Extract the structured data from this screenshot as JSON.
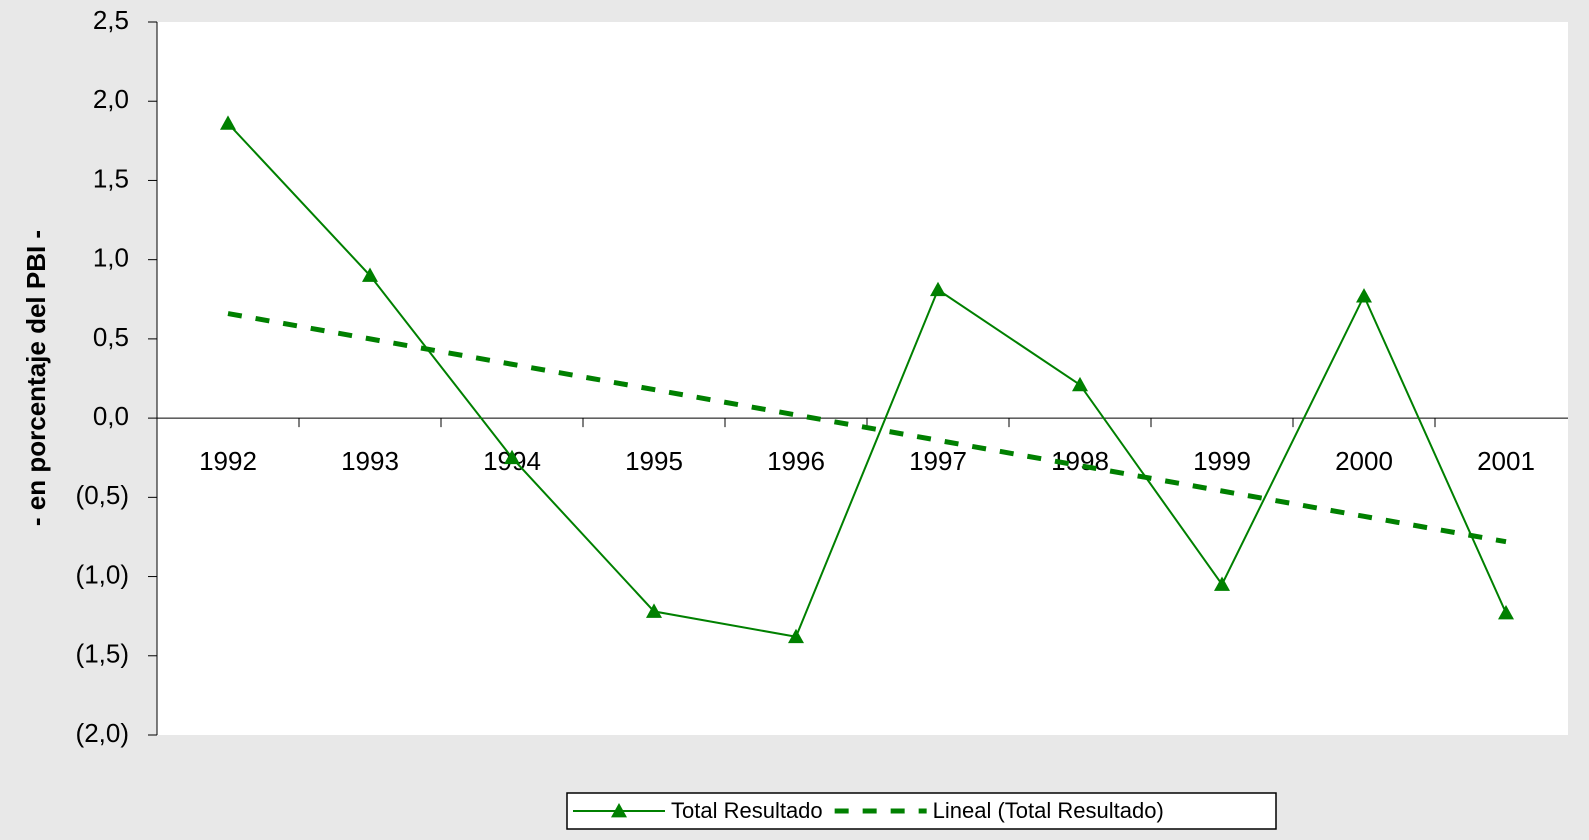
{
  "chart_data": {
    "type": "line",
    "y_label": "- en porcentaje del PBI -",
    "categories": [
      "1992",
      "1993",
      "1994",
      "1995",
      "1996",
      "1997",
      "1998",
      "1999",
      "2000",
      "2001"
    ],
    "series": [
      {
        "name": "Total Resultado",
        "color": "#008000",
        "marker": "triangle",
        "dashed": false,
        "values": [
          1.86,
          0.9,
          -0.25,
          -1.22,
          -1.38,
          0.81,
          0.21,
          -1.05,
          0.77,
          -1.23
        ]
      },
      {
        "name": "Lineal (Total Resultado)",
        "color": "#008000",
        "marker": "none",
        "dashed": true,
        "values": [
          0.66,
          0.5,
          0.34,
          0.18,
          0.02,
          -0.14,
          -0.3,
          -0.46,
          -0.62,
          -0.78
        ]
      }
    ],
    "ylim": [
      -2.0,
      2.5
    ],
    "yticks": [
      {
        "value": -2.0,
        "label": "(2,0)"
      },
      {
        "value": -1.5,
        "label": "(1,5)"
      },
      {
        "value": -1.0,
        "label": "(1,0)"
      },
      {
        "value": -0.5,
        "label": "(0,5)"
      },
      {
        "value": 0.0,
        "label": "0,0"
      },
      {
        "value": 0.5,
        "label": "0,5"
      },
      {
        "value": 1.0,
        "label": "1,0"
      },
      {
        "value": 1.5,
        "label": "1,5"
      },
      {
        "value": 2.0,
        "label": "2,0"
      },
      {
        "value": 2.5,
        "label": "2,5"
      }
    ],
    "grid": false,
    "legend": "bottom"
  }
}
